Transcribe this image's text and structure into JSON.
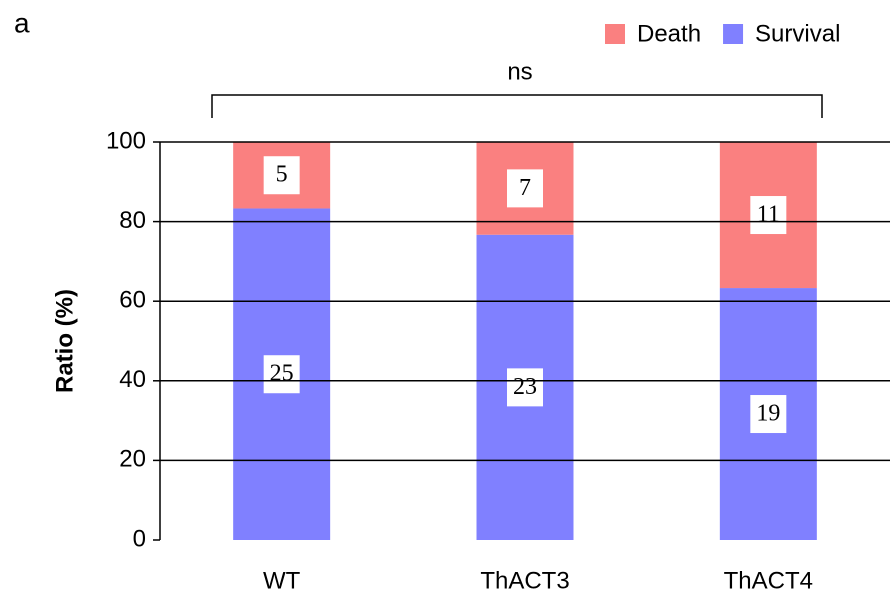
{
  "chart_data": {
    "type": "stacked_bar",
    "panel_label": "a",
    "annotation": "ns",
    "y_label": "Ratio (%)",
    "categories": [
      "WT",
      "ThACT3",
      "ThACT4"
    ],
    "series": [
      {
        "name": "Death",
        "color": "#fa8080",
        "values": [
          16.7,
          23.3,
          36.7
        ],
        "counts": [
          5,
          7,
          11
        ]
      },
      {
        "name": "Survival",
        "color": "#8080ff",
        "values": [
          83.3,
          76.7,
          63.3
        ],
        "counts": [
          25,
          23,
          19
        ]
      }
    ],
    "ylim": [
      0,
      100
    ],
    "yticks": [
      0,
      20,
      40,
      60,
      80,
      100
    ],
    "grid": true,
    "legend": "top-right"
  }
}
